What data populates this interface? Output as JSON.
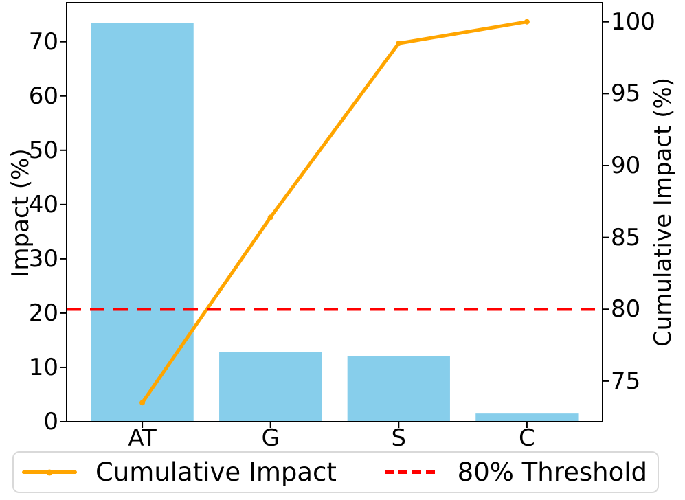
{
  "chart_data": {
    "type": "pareto (bar + line, dual axis)",
    "categories": [
      "AT",
      "G",
      "S",
      "C"
    ],
    "series": [
      {
        "name": "Impact",
        "type": "bar",
        "axis": "left",
        "color": "#87CEEB",
        "values": [
          73.5,
          12.9,
          12.1,
          1.5
        ]
      },
      {
        "name": "Cumulative Impact",
        "type": "line",
        "axis": "right",
        "color": "#FFA500",
        "values": [
          73.5,
          86.4,
          98.5,
          100.0
        ]
      },
      {
        "name": "80% Threshold",
        "type": "hline",
        "axis": "right",
        "color": "#FF0000",
        "value": 80,
        "linestyle": "dashed"
      }
    ],
    "x_axis": {
      "lim": [
        -0.59,
        3.59
      ],
      "bar_width": 0.8
    },
    "left_axis": {
      "label": "Impact (%)",
      "ticks": [
        0,
        10,
        20,
        30,
        40,
        50,
        60,
        70
      ],
      "lim": [
        0,
        77.175
      ]
    },
    "right_axis": {
      "label": "Cumulative Impact (%)",
      "ticks": [
        75,
        80,
        85,
        90,
        95,
        100
      ],
      "lim": [
        72.175,
        101.325
      ]
    },
    "legend": {
      "position": "bottom",
      "items": [
        {
          "label": "Cumulative Impact",
          "swatch": "line-with-marker",
          "color": "#FFA500"
        },
        {
          "label": "80% Threshold",
          "swatch": "dashed-line",
          "color": "#FF0000"
        }
      ]
    },
    "grid": false,
    "spine_color": "#000000",
    "background": "#ffffff"
  }
}
